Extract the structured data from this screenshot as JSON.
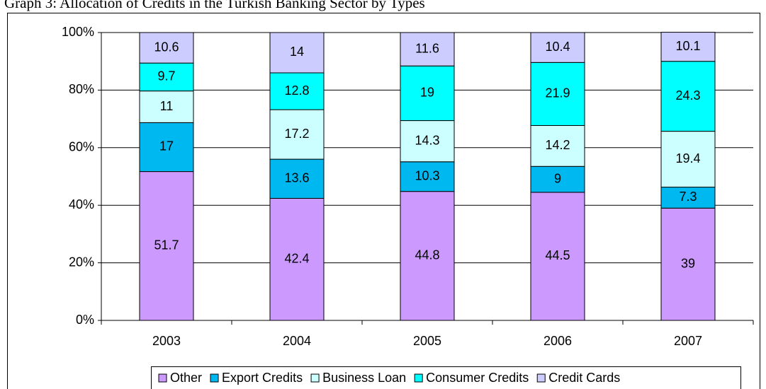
{
  "chart_data": {
    "type": "stacked_bar",
    "title": "Graph 3: Allocation of Credits in the Turkish Banking Sector by Types",
    "categories": [
      "2003",
      "2004",
      "2005",
      "2006",
      "2007"
    ],
    "series": [
      {
        "name": "Other",
        "color": "#cc99ff",
        "values": [
          51.7,
          42.4,
          44.8,
          44.5,
          39
        ]
      },
      {
        "name": "Export Credits",
        "color": "#00b8f0",
        "values": [
          17,
          13.6,
          10.3,
          9,
          7.3
        ]
      },
      {
        "name": "Business Loan",
        "color": "#ccffff",
        "values": [
          11,
          17.2,
          14.3,
          14.2,
          19.4
        ]
      },
      {
        "name": "Consumer Credits",
        "color": "#00ffff",
        "values": [
          9.7,
          12.8,
          19,
          21.9,
          24.3
        ]
      },
      {
        "name": "Credit Cards",
        "color": "#ccccff",
        "values": [
          10.6,
          14,
          11.6,
          10.4,
          10.1
        ]
      }
    ],
    "ylim": [
      0,
      100
    ],
    "yticks": [
      {
        "value": 0,
        "label": "0%"
      },
      {
        "value": 20,
        "label": "20%"
      },
      {
        "value": 40,
        "label": "40%"
      },
      {
        "value": 60,
        "label": "60%"
      },
      {
        "value": 80,
        "label": "80%"
      },
      {
        "value": 100,
        "label": "100%"
      }
    ],
    "grid": true,
    "legend": "bottom"
  }
}
